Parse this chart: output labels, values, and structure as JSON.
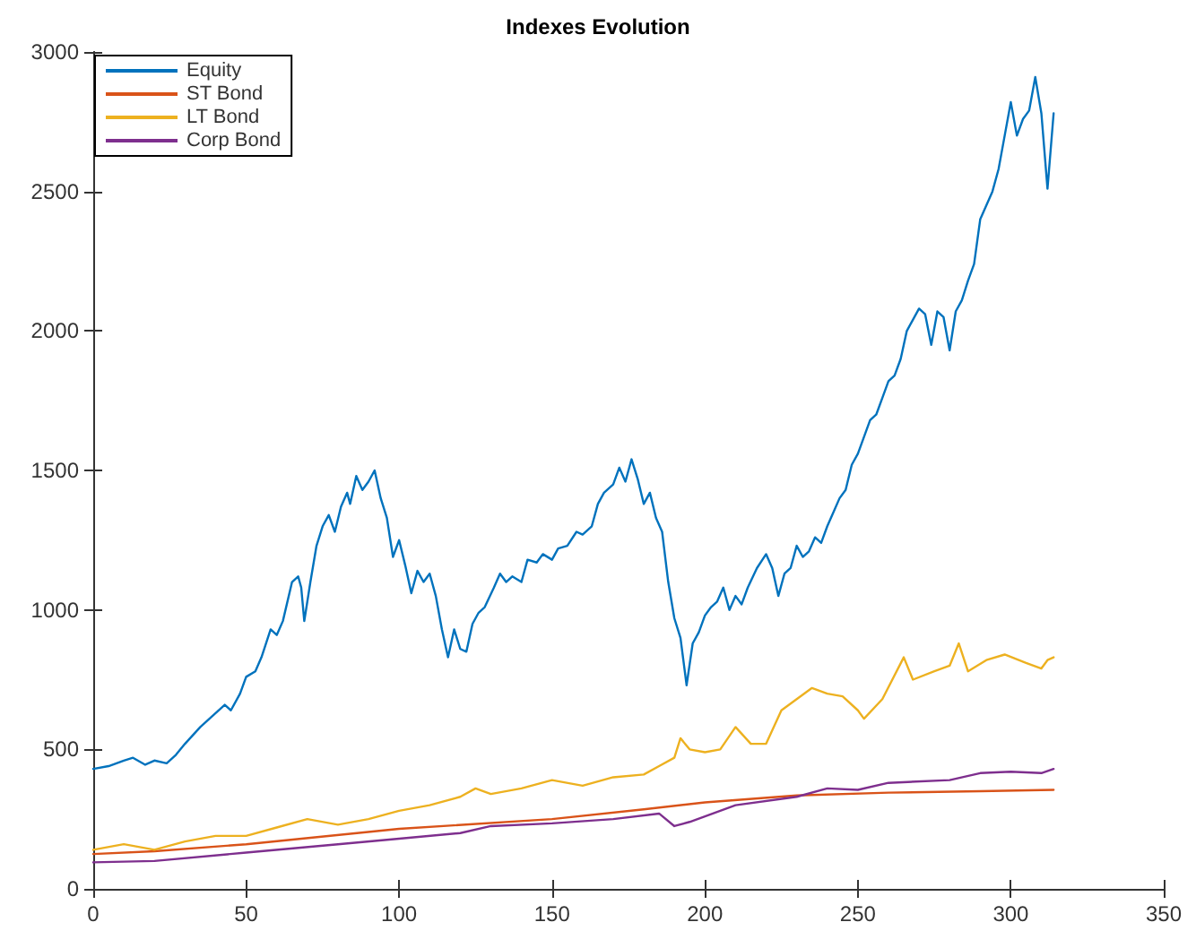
{
  "chart_data": {
    "type": "line",
    "title": "Indexes Evolution",
    "xlim": [
      0,
      350
    ],
    "xticks": [
      0,
      50,
      100,
      150,
      200,
      250,
      300,
      350
    ],
    "ylim": [
      0,
      3000
    ],
    "yticks": [
      0,
      500,
      1000,
      1500,
      2000,
      2500,
      3000
    ],
    "grid": false,
    "legend": "top left",
    "marker": "none",
    "line_style": "solid",
    "series": [
      {
        "name": "Equity",
        "color": "#0072bd",
        "x": [
          0,
          5,
          10,
          13,
          17,
          20,
          24,
          27,
          30,
          35,
          40,
          43,
          45,
          48,
          50,
          53,
          55,
          58,
          60,
          62,
          65,
          67,
          68,
          69,
          71,
          73,
          75,
          77,
          79,
          81,
          83,
          84,
          86,
          88,
          90,
          92,
          94,
          96,
          98,
          100,
          102,
          104,
          106,
          108,
          110,
          112,
          114,
          116,
          118,
          120,
          122,
          124,
          126,
          128,
          131,
          133,
          135,
          137,
          140,
          142,
          145,
          147,
          150,
          152,
          155,
          158,
          160,
          163,
          165,
          167,
          170,
          172,
          174,
          176,
          178,
          180,
          182,
          184,
          186,
          188,
          190,
          192,
          194,
          196,
          198,
          200,
          202,
          204,
          206,
          208,
          210,
          212,
          214,
          217,
          220,
          222,
          224,
          226,
          228,
          230,
          232,
          234,
          236,
          238,
          240,
          242,
          244,
          246,
          248,
          250,
          252,
          254,
          256,
          258,
          260,
          262,
          264,
          266,
          268,
          270,
          272,
          274,
          276,
          278,
          280,
          282,
          284,
          286,
          288,
          290,
          292,
          294,
          296,
          298,
          300,
          302,
          304,
          306,
          308,
          310,
          312,
          314
        ],
        "values": [
          430,
          440,
          460,
          470,
          445,
          460,
          450,
          480,
          520,
          580,
          630,
          660,
          640,
          700,
          760,
          780,
          830,
          930,
          910,
          960,
          1100,
          1120,
          1080,
          960,
          1100,
          1230,
          1300,
          1340,
          1280,
          1370,
          1420,
          1380,
          1480,
          1430,
          1460,
          1500,
          1400,
          1330,
          1190,
          1250,
          1160,
          1060,
          1140,
          1100,
          1130,
          1050,
          930,
          830,
          930,
          860,
          850,
          950,
          990,
          1010,
          1080,
          1130,
          1100,
          1120,
          1100,
          1180,
          1170,
          1200,
          1180,
          1220,
          1230,
          1280,
          1270,
          1300,
          1380,
          1420,
          1450,
          1510,
          1460,
          1540,
          1470,
          1380,
          1420,
          1330,
          1280,
          1100,
          970,
          900,
          730,
          880,
          920,
          980,
          1010,
          1030,
          1080,
          1000,
          1050,
          1020,
          1080,
          1150,
          1200,
          1150,
          1050,
          1130,
          1150,
          1230,
          1190,
          1210,
          1260,
          1240,
          1300,
          1350,
          1400,
          1430,
          1520,
          1560,
          1620,
          1680,
          1700,
          1760,
          1820,
          1840,
          1900,
          2000,
          2040,
          2080,
          2060,
          1950,
          2070,
          2050,
          1930,
          2070,
          2110,
          2180,
          2240,
          2400,
          2450,
          2500,
          2580,
          2700,
          2820,
          2700,
          2760,
          2790,
          2910,
          2780,
          2510,
          2780
        ]
      },
      {
        "name": "ST Bond",
        "color": "#d95319",
        "x": [
          0,
          20,
          50,
          100,
          150,
          180,
          200,
          230,
          260,
          290,
          314
        ],
        "values": [
          125,
          135,
          160,
          215,
          250,
          285,
          310,
          335,
          345,
          350,
          355
        ]
      },
      {
        "name": "LT Bond",
        "color": "#edb120",
        "x": [
          0,
          10,
          20,
          30,
          40,
          50,
          60,
          70,
          80,
          90,
          100,
          110,
          120,
          125,
          130,
          140,
          150,
          160,
          170,
          180,
          185,
          190,
          192,
          195,
          200,
          205,
          210,
          215,
          220,
          225,
          230,
          235,
          240,
          245,
          250,
          252,
          258,
          265,
          268,
          275,
          280,
          283,
          286,
          292,
          298,
          305,
          310,
          312,
          314
        ],
        "values": [
          140,
          160,
          140,
          170,
          190,
          190,
          220,
          250,
          230,
          250,
          280,
          300,
          330,
          360,
          340,
          360,
          390,
          370,
          400,
          410,
          440,
          470,
          540,
          500,
          490,
          500,
          580,
          520,
          520,
          640,
          680,
          720,
          700,
          690,
          640,
          610,
          680,
          830,
          750,
          780,
          800,
          880,
          780,
          820,
          840,
          810,
          790,
          820,
          830
        ]
      },
      {
        "name": "Corp Bond",
        "color": "#7e2f8e",
        "x": [
          0,
          20,
          50,
          80,
          100,
          120,
          130,
          150,
          170,
          185,
          190,
          195,
          210,
          230,
          240,
          250,
          260,
          280,
          290,
          300,
          310,
          314
        ],
        "values": [
          95,
          100,
          130,
          160,
          180,
          200,
          225,
          235,
          250,
          270,
          225,
          240,
          300,
          330,
          360,
          355,
          380,
          390,
          415,
          420,
          415,
          430
        ]
      }
    ]
  }
}
